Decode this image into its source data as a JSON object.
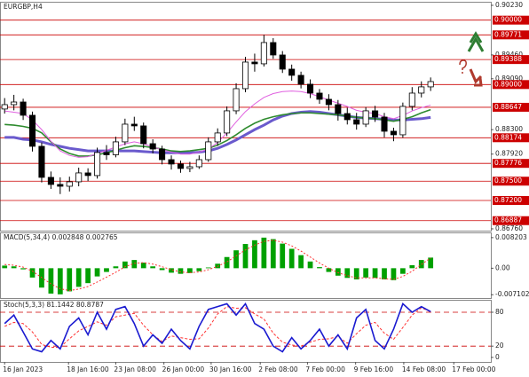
{
  "chart_data": [
    {
      "type": "candlestick",
      "title": "EURGBP,H4",
      "x": [
        0,
        1,
        2,
        3,
        4,
        5,
        6,
        7,
        8,
        9,
        10,
        11,
        12,
        13,
        14,
        15,
        16,
        17,
        18,
        19,
        20,
        21,
        22,
        23,
        24,
        25,
        26,
        27,
        28,
        29,
        30,
        31,
        32,
        33,
        34,
        35,
        36,
        37,
        38,
        39,
        40,
        41,
        42,
        43,
        44,
        45,
        46
      ],
      "open": [
        0.8862,
        0.88688,
        0.88729,
        0.88523,
        0.88041,
        0.87559,
        0.87449,
        0.87421,
        0.8749,
        0.87628,
        0.87587,
        0.87945,
        0.8791,
        0.8811,
        0.88385,
        0.88358,
        0.88082,
        0.87999,
        0.87834,
        0.87766,
        0.87697,
        0.87724,
        0.87834,
        0.8811,
        0.88248,
        0.88592,
        0.88936,
        0.89349,
        0.89322,
        0.89652,
        0.89459,
        0.89239,
        0.89143,
        0.89005,
        0.88867,
        0.88771,
        0.88688,
        0.8855,
        0.88454,
        0.88385,
        0.88592,
        0.88495,
        0.88275,
        0.8822,
        0.88661,
        0.88867,
        0.88964
      ],
      "high": [
        0.8879,
        0.8884,
        0.8878,
        0.8858,
        0.881,
        0.8765,
        0.8756,
        0.8757,
        0.8771,
        0.877,
        0.8802,
        0.8806,
        0.8819,
        0.8847,
        0.885,
        0.8841,
        0.8815,
        0.8805,
        0.879,
        0.8782,
        0.878,
        0.879,
        0.8818,
        0.8832,
        0.8866,
        0.8902,
        0.8943,
        0.8948,
        0.89771,
        0.8972,
        0.8952,
        0.8931,
        0.892,
        0.8908,
        0.8893,
        0.8885,
        0.8876,
        0.8864,
        0.8856,
        0.8865,
        0.8867,
        0.8856,
        0.8833,
        0.8872,
        0.8896,
        0.8905,
        0.8911
      ],
      "low": [
        0.8855,
        0.886,
        0.8845,
        0.8796,
        0.8748,
        0.8738,
        0.873,
        0.8734,
        0.8742,
        0.875,
        0.8754,
        0.8783,
        0.8787,
        0.8806,
        0.8828,
        0.8801,
        0.8793,
        0.8776,
        0.8768,
        0.8763,
        0.8764,
        0.8769,
        0.878,
        0.8805,
        0.882,
        0.8854,
        0.8888,
        0.892,
        0.8928,
        0.894,
        0.8918,
        0.8906,
        0.8894,
        0.8879,
        0.887,
        0.886,
        0.8844,
        0.8838,
        0.883,
        0.8834,
        0.8842,
        0.8818,
        0.8812,
        0.88174,
        0.886,
        0.888,
        0.889
      ],
      "close": [
        0.88688,
        0.88729,
        0.88523,
        0.88041,
        0.87559,
        0.87449,
        0.87421,
        0.8749,
        0.87628,
        0.87587,
        0.87945,
        0.8791,
        0.8811,
        0.88385,
        0.88358,
        0.88082,
        0.87999,
        0.87834,
        0.87766,
        0.87697,
        0.87724,
        0.87834,
        0.8811,
        0.88248,
        0.88592,
        0.88936,
        0.89349,
        0.89322,
        0.89652,
        0.89459,
        0.89239,
        0.89143,
        0.89005,
        0.88867,
        0.88771,
        0.88688,
        0.8855,
        0.88454,
        0.88385,
        0.88592,
        0.88495,
        0.88275,
        0.8822,
        0.88661,
        0.88867,
        0.88964,
        0.89046
      ],
      "up_color": "#ffffff",
      "down_color": "#000000",
      "wick_color": "#000000",
      "lines": [
        {
          "color": "#6a5acd",
          "width": 3,
          "values": [
            0.8818,
            0.8818,
            0.8815,
            0.8814,
            0.8811,
            0.8807,
            0.8804,
            0.8801,
            0.8799,
            0.8797,
            0.8797,
            0.8797,
            0.8797,
            0.8797,
            0.8797,
            0.8796,
            0.8795,
            0.8794,
            0.8794,
            0.8794,
            0.8794,
            0.8795,
            0.8797,
            0.8801,
            0.8807,
            0.8814,
            0.8822,
            0.883,
            0.8837,
            0.8845,
            0.8851,
            0.8855,
            0.8857,
            0.8858,
            0.8857,
            0.8855,
            0.8853,
            0.8851,
            0.8849,
            0.8848,
            0.8847,
            0.8846,
            0.8845,
            0.8845,
            0.8846,
            0.8847,
            0.8849
          ]
        },
        {
          "color": "#2e8b2e",
          "width": 1.6,
          "values": [
            0.8838,
            0.8837,
            0.8835,
            0.8832,
            0.8825,
            0.8811,
            0.88,
            0.8793,
            0.8789,
            0.8789,
            0.8791,
            0.8794,
            0.8798,
            0.8802,
            0.8805,
            0.8804,
            0.8802,
            0.88,
            0.8797,
            0.8796,
            0.8797,
            0.8799,
            0.8801,
            0.8806,
            0.8813,
            0.8822,
            0.8832,
            0.884,
            0.8846,
            0.885,
            0.8853,
            0.8855,
            0.8856,
            0.8856,
            0.8855,
            0.8854,
            0.8853,
            0.8851,
            0.8849,
            0.8848,
            0.8847,
            0.8845,
            0.8843,
            0.8846,
            0.885,
            0.8856,
            0.8861
          ]
        },
        {
          "color": "#e060e0",
          "width": 1,
          "values": [
            0.8859,
            0.8857,
            0.8855,
            0.8845,
            0.883,
            0.8812,
            0.8797,
            0.879,
            0.8787,
            0.8788,
            0.8793,
            0.8798,
            0.8803,
            0.8808,
            0.8811,
            0.8808,
            0.8803,
            0.8799,
            0.8795,
            0.8792,
            0.8792,
            0.8795,
            0.88,
            0.881,
            0.8825,
            0.8842,
            0.8858,
            0.887,
            0.888,
            0.8886,
            0.8889,
            0.889,
            0.8889,
            0.8886,
            0.8881,
            0.8876,
            0.8871,
            0.8866,
            0.886,
            0.8857,
            0.8855,
            0.885,
            0.8847,
            0.8852,
            0.8859,
            0.8864,
            0.8868
          ]
        }
      ],
      "xlim": [
        -0.5,
        52.5
      ],
      "ylim": [
        0.86732,
        0.90285
      ],
      "yticks": [
        {
          "value": 0.9023,
          "label": "0.90230"
        },
        {
          "value": 0.8946,
          "label": "0.89460"
        },
        {
          "value": 0.8909,
          "label": "0.89090"
        },
        {
          "value": 0.883,
          "label": "0.88300"
        },
        {
          "value": 0.8792,
          "label": "0.87920"
        },
        {
          "value": 0.8676,
          "label": "0.86760"
        }
      ],
      "levels": [
        {
          "value": 0.9,
          "label": "0.90000"
        },
        {
          "value": 0.89771,
          "label": "0.89771"
        },
        {
          "value": 0.89388,
          "label": "0.89388"
        },
        {
          "value": 0.89,
          "label": "0.89000"
        },
        {
          "value": 0.88647,
          "label": "0.88647"
        },
        {
          "value": 0.88174,
          "label": "0.88174"
        },
        {
          "value": 0.87776,
          "label": "0.87776"
        },
        {
          "value": 0.875,
          "label": "0.87500"
        },
        {
          "value": 0.872,
          "label": "0.87200"
        },
        {
          "value": 0.86887,
          "label": "0.86887"
        }
      ],
      "level_color": "#cc0000"
    },
    {
      "type": "macd",
      "title": "MACD(5,34,4) 0.002848 0.002765",
      "histogram": [
        0.0007,
        0.0005,
        -0.0003,
        -0.0025,
        -0.0052,
        -0.0068,
        -0.007,
        -0.0062,
        -0.005,
        -0.004,
        -0.0022,
        -0.001,
        0.0005,
        0.0018,
        0.0022,
        0.0015,
        0.0005,
        -0.0005,
        -0.0012,
        -0.0015,
        -0.0013,
        -0.0008,
        0.0002,
        0.0012,
        0.003,
        0.0048,
        0.0065,
        0.0075,
        0.0082,
        0.0078,
        0.0066,
        0.0052,
        0.0035,
        0.0018,
        0.0003,
        -0.001,
        -0.002,
        -0.0026,
        -0.003,
        -0.0025,
        -0.0026,
        -0.003,
        -0.0032,
        -0.0015,
        0.0008,
        0.0022,
        0.002848
      ],
      "signal": [
        0.001,
        0.0008,
        0.0003,
        -0.0008,
        -0.0025,
        -0.0042,
        -0.0055,
        -0.006,
        -0.0056,
        -0.0049,
        -0.0037,
        -0.0024,
        -0.0011,
        0.0004,
        0.0013,
        0.0015,
        0.0011,
        0.0004,
        -0.0004,
        -0.001,
        -0.0012,
        -0.001,
        -0.0004,
        0.0005,
        0.0017,
        0.0033,
        0.0049,
        0.0062,
        0.0072,
        0.0075,
        0.007,
        0.006,
        0.0046,
        0.003,
        0.0014,
        0.0,
        -0.0012,
        -0.002,
        -0.0026,
        -0.0026,
        -0.0026,
        -0.0028,
        -0.003,
        -0.0022,
        -0.0008,
        0.001,
        0.002765
      ],
      "histogram_color": "#00a000",
      "signal_color": "#ff3030",
      "ylim": [
        -0.008,
        0.0096
      ],
      "yticks": [
        0.008203,
        {
          "value": 0,
          "label": "0.00"
        },
        -0.007102
      ]
    },
    {
      "type": "stochastic",
      "title": "Stoch(5,3,3) 81.1442 80.8787",
      "main": [
        60,
        75,
        45,
        15,
        10,
        30,
        15,
        55,
        70,
        40,
        80,
        50,
        85,
        90,
        60,
        20,
        40,
        25,
        50,
        30,
        15,
        55,
        85,
        90,
        95,
        75,
        95,
        60,
        50,
        20,
        10,
        35,
        15,
        30,
        50,
        20,
        40,
        15,
        70,
        85,
        30,
        15,
        50,
        95,
        80,
        90,
        81.1442
      ],
      "signal": [
        55,
        62,
        60,
        45,
        23,
        18,
        18,
        33,
        47,
        55,
        63,
        57,
        72,
        75,
        78,
        57,
        40,
        28,
        38,
        35,
        32,
        33,
        52,
        77,
        90,
        87,
        88,
        77,
        68,
        43,
        27,
        22,
        20,
        27,
        32,
        33,
        37,
        25,
        42,
        57,
        62,
        43,
        32,
        53,
        75,
        88,
        80.8787
      ],
      "main_color": "#1a1ad0",
      "signal_color": "#ff3030",
      "ylim": [
        -8,
        102
      ],
      "yticks": [
        0,
        20,
        80
      ],
      "levels": [
        20,
        80
      ],
      "level_color": "#cc0000",
      "xticks": [
        {
          "value": 0,
          "label": "16 Jan 2023"
        },
        {
          "value": 6.9,
          "label": "18 Jan 16:00"
        },
        {
          "value": 12,
          "label": "23 Jan 08:00"
        },
        {
          "value": 17.2,
          "label": "26 Jan 00:00"
        },
        {
          "value": 22.3,
          "label": "30 Jan 16:00"
        },
        {
          "value": 27.6,
          "label": "2 Feb 08:00"
        },
        {
          "value": 32.7,
          "label": "7 Feb 00:00"
        },
        {
          "value": 37.9,
          "label": "9 Feb 16:00"
        },
        {
          "value": 43.1,
          "label": "14 Feb 08:00"
        },
        {
          "value": 48.5,
          "label": "17 Feb 00:00"
        }
      ]
    }
  ]
}
